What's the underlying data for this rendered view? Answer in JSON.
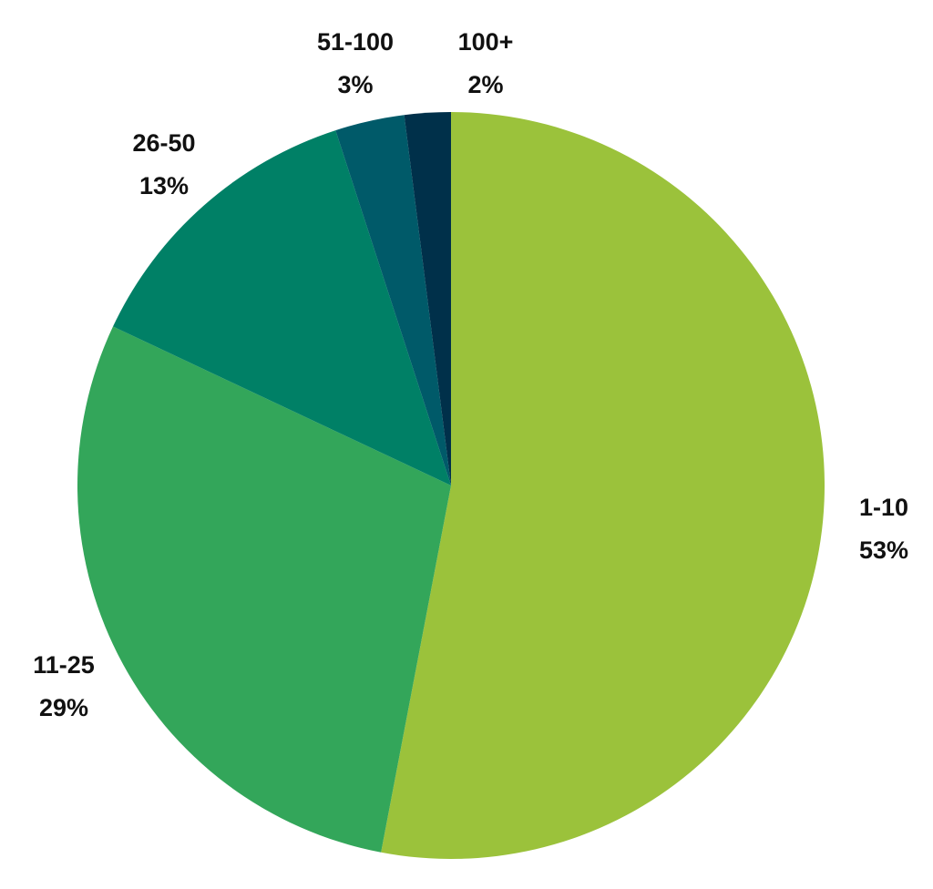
{
  "chart_data": {
    "type": "pie",
    "title": "",
    "start_angle": "12 o'clock",
    "direction": "clockwise",
    "slices": [
      {
        "label": "1-10",
        "value": 53,
        "value_label": "53%",
        "color": "#9BC23B"
      },
      {
        "label": "11-25",
        "value": 29,
        "value_label": "29%",
        "color": "#33A65A"
      },
      {
        "label": "26-50",
        "value": 13,
        "value_label": "13%",
        "color": "#008066"
      },
      {
        "label": "51-100",
        "value": 3,
        "value_label": "3%",
        "color": "#005A69"
      },
      {
        "label": "100+",
        "value": 2,
        "value_label": "2%",
        "color": "#00304A"
      }
    ]
  }
}
